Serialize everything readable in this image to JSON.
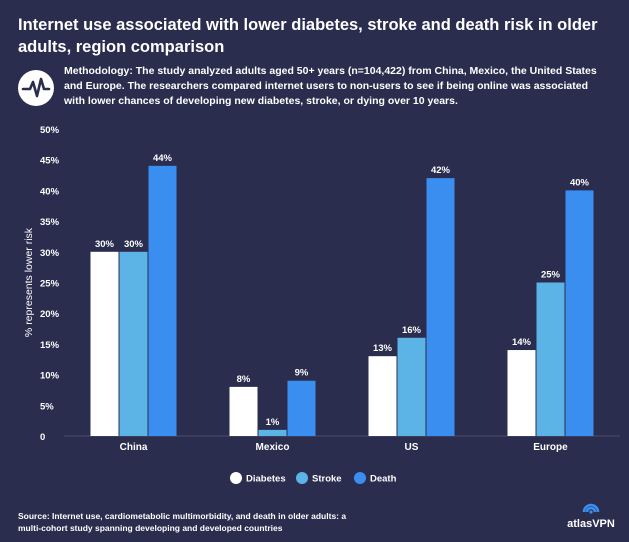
{
  "title": "Internet use associated with lower diabetes, stroke and death risk in older adults, region comparison",
  "methodology": "Methodology: The study analyzed adults aged 50+ years (n=104,422) from China, Mexico, the United States and Europe. The researchers compared internet users to non-users to see if being online was associated with lower chances of developing new diabetes, stroke, or dying over 10 years.",
  "methodology_icon": "pulse-icon",
  "source": "Source: Internet use, cardiometabolic multimorbidity, and death in older adults: a multi-cohort study spanning developing and developed countries",
  "brand": "atlasVPN",
  "brand_icon": "atlasvpn-logo-icon",
  "colors": {
    "background": "#2a2d4e",
    "diabetes": "#ffffff",
    "stroke": "#5bb3e6",
    "death": "#3a8ef0"
  },
  "chart_data": {
    "type": "bar",
    "categories": [
      "China",
      "Mexico",
      "US",
      "Europe"
    ],
    "series": [
      {
        "name": "Diabetes",
        "values": [
          30,
          8,
          13,
          14
        ],
        "labels": [
          "30%",
          "8%",
          "13%",
          "14%"
        ]
      },
      {
        "name": "Stroke",
        "values": [
          30,
          1,
          16,
          25
        ],
        "labels": [
          "30%",
          "1%",
          "16%",
          "25%"
        ]
      },
      {
        "name": "Death",
        "values": [
          44,
          9,
          42,
          40
        ],
        "labels": [
          "44%",
          "9%",
          "42%",
          "40%"
        ]
      }
    ],
    "ylabel": "% represents lower risk",
    "yticks": [
      0,
      5,
      10,
      15,
      20,
      25,
      30,
      35,
      40,
      45,
      50
    ],
    "ytick_labels": [
      "0",
      "5%",
      "10%",
      "15%",
      "20%",
      "25%",
      "30%",
      "35%",
      "40%",
      "45%",
      "50%"
    ],
    "ylim": [
      0,
      50
    ],
    "grid": false,
    "legend_position": "bottom"
  }
}
